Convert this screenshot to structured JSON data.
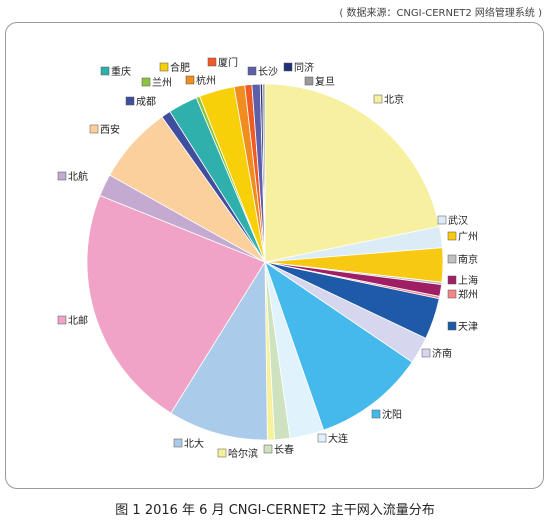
{
  "source_note": "( 数据来源：CNGI-CERNET2 网络管理系统 )",
  "caption": "图 1  2016 年 6 月 CNGI-CERNET2 主干网入流量分布",
  "chart_data": {
    "type": "pie",
    "title": "",
    "start": "12 o'clock",
    "direction": "clockwise",
    "slices": [
      {
        "label": "北京",
        "value": 20.4,
        "color": "#f7f0a0"
      },
      {
        "label": "武汉",
        "value": 1.8,
        "color": "#dcecf6"
      },
      {
        "label": "广州",
        "value": 2.9,
        "color": "#f8c912"
      },
      {
        "label": "南京",
        "value": 0.2,
        "color": "#bfbfbf"
      },
      {
        "label": "上海",
        "value": 1.0,
        "color": "#9e1f63"
      },
      {
        "label": "郑州",
        "value": 0.2,
        "color": "#f2878a"
      },
      {
        "label": "天津",
        "value": 3.5,
        "color": "#1f5aa8"
      },
      {
        "label": "济南",
        "value": 2.3,
        "color": "#d6d6ee"
      },
      {
        "label": "沈阳",
        "value": 9.5,
        "color": "#45b9ec"
      },
      {
        "label": "大连",
        "value": 2.9,
        "color": "#e0f2fb"
      },
      {
        "label": "长春",
        "value": 1.3,
        "color": "#cfe2bf"
      },
      {
        "label": "哈尔滨",
        "value": 0.6,
        "color": "#f7f19a"
      },
      {
        "label": "北大",
        "value": 8.5,
        "color": "#aacbea"
      },
      {
        "label": "北邮",
        "value": 20.8,
        "color": "#f1a2c7"
      },
      {
        "label": "北航",
        "value": 1.9,
        "color": "#c4aad0"
      },
      {
        "label": "西安",
        "value": 6.6,
        "color": "#fbd09c"
      },
      {
        "label": "成都",
        "value": 0.8,
        "color": "#3f4e9f"
      },
      {
        "label": "重庆",
        "value": 2.5,
        "color": "#2fb0ad"
      },
      {
        "label": "兰州",
        "value": 0.3,
        "color": "#8cc43f"
      },
      {
        "label": "合肥",
        "value": 3.0,
        "color": "#f8d009"
      },
      {
        "label": "杭州",
        "value": 0.9,
        "color": "#f08d1e"
      },
      {
        "label": "厦门",
        "value": 0.6,
        "color": "#f15a24"
      },
      {
        "label": "长沙",
        "value": 0.7,
        "color": "#5d5fa8"
      },
      {
        "label": "同济",
        "value": 0.2,
        "color": "#22307a"
      },
      {
        "label": "复旦",
        "value": 0.2,
        "color": "#9a9a9a"
      }
    ]
  }
}
